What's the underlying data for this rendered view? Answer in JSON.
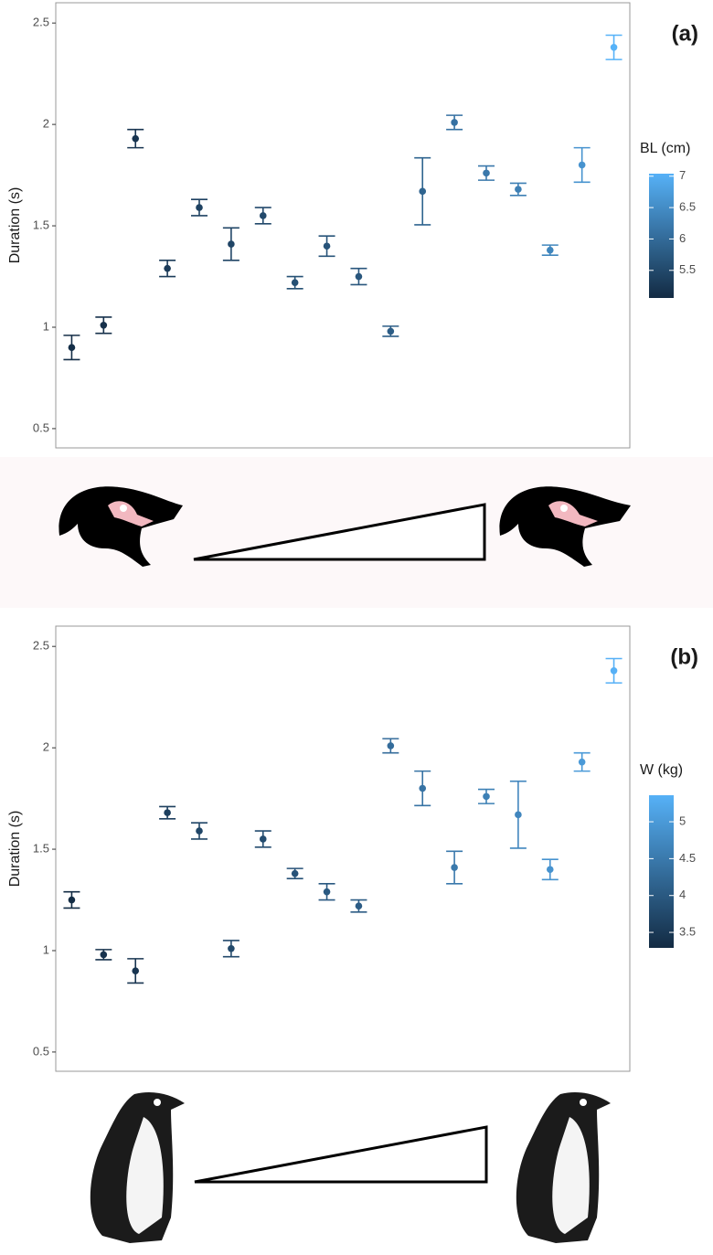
{
  "chart_data": [
    {
      "type": "scatter",
      "panel_label": "(a)",
      "ylabel": "Duration (s)",
      "values": [
        0.9,
        1.01,
        1.93,
        1.29,
        1.59,
        1.41,
        1.55,
        1.22,
        1.4,
        1.25,
        0.98,
        1.67,
        2.01,
        1.76,
        1.68,
        1.38,
        1.8,
        2.38
      ],
      "errors": [
        0.06,
        0.04,
        0.045,
        0.04,
        0.04,
        0.08,
        0.04,
        0.03,
        0.05,
        0.04,
        0.025,
        0.165,
        0.035,
        0.035,
        0.03,
        0.025,
        0.085,
        0.06
      ],
      "color_values": [
        5.1,
        5.15,
        5.2,
        5.3,
        5.4,
        5.45,
        5.5,
        5.6,
        5.65,
        5.7,
        5.8,
        5.9,
        6.1,
        6.2,
        6.3,
        6.4,
        6.6,
        7.05
      ],
      "ylim": [
        0.405,
        2.6
      ],
      "yticks": [
        0.5,
        1.0,
        1.5,
        2.0,
        2.5
      ],
      "colorbar": {
        "title": "BL (cm)",
        "lim": [
          5.06,
          7.04
        ],
        "ticks": [
          5.5,
          6.0,
          6.5,
          7.0
        ],
        "colors": [
          "#132B43",
          "#56B1F7"
        ]
      }
    },
    {
      "type": "scatter",
      "panel_label": "(b)",
      "ylabel": "Duration (s)",
      "values": [
        1.25,
        0.98,
        0.9,
        1.68,
        1.59,
        1.01,
        1.55,
        1.38,
        1.29,
        1.22,
        2.01,
        1.8,
        1.41,
        1.76,
        1.67,
        1.4,
        1.93,
        2.38
      ],
      "errors": [
        0.04,
        0.025,
        0.06,
        0.03,
        0.04,
        0.04,
        0.04,
        0.025,
        0.04,
        0.03,
        0.035,
        0.085,
        0.08,
        0.035,
        0.165,
        0.05,
        0.045,
        0.06
      ],
      "color_values": [
        3.3,
        3.4,
        3.45,
        3.6,
        3.7,
        3.75,
        3.8,
        3.9,
        4.0,
        4.05,
        4.3,
        4.4,
        4.5,
        4.6,
        4.7,
        4.9,
        5.0,
        5.35
      ],
      "ylim": [
        0.405,
        2.6
      ],
      "yticks": [
        0.5,
        1.0,
        1.5,
        2.0,
        2.5
      ],
      "colorbar": {
        "title": "W (kg)",
        "lim": [
          3.29,
          5.36
        ],
        "ticks": [
          3.5,
          4.0,
          4.5,
          5.0
        ],
        "colors": [
          "#132B43",
          "#56B1F7"
        ]
      }
    }
  ]
}
